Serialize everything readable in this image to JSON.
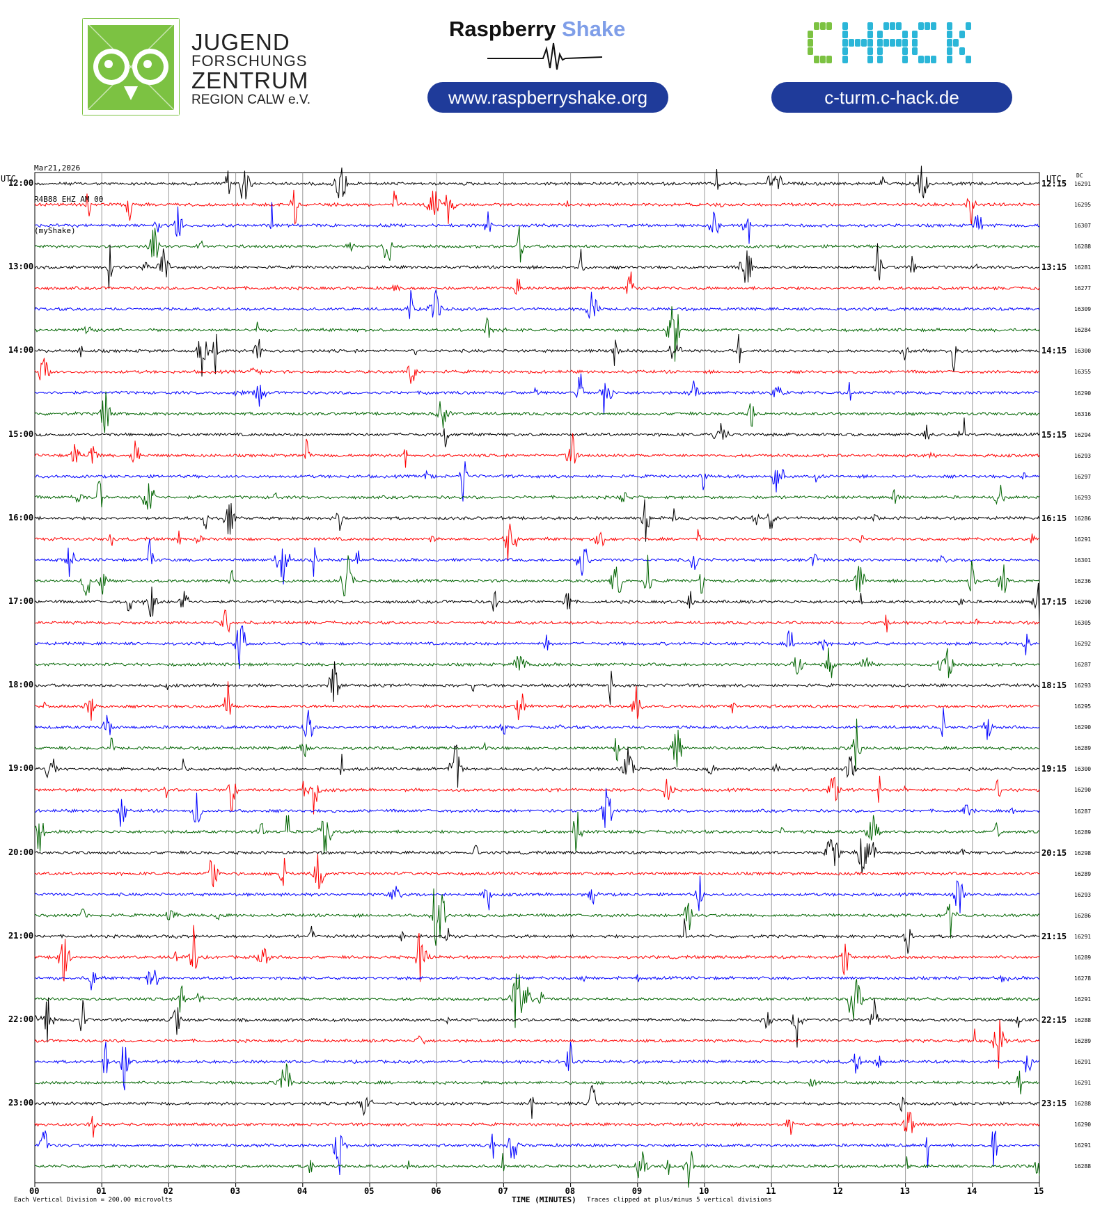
{
  "logos": {
    "jfz": {
      "line1": "JUGEND",
      "line2": "FORSCHUNGS",
      "line3": "ZENTRUM",
      "line4": "REGION CALW e.V.",
      "color": "#7cc242"
    },
    "raspberry_shake": {
      "part1": "Raspberry",
      "part2": "Shake",
      "url": "www.raspberryshake.org"
    },
    "chack": {
      "text": "CHACK",
      "url": "c-turm.c-hack.de",
      "green": "#7cc242",
      "cyan": "#2bb6d8"
    },
    "pill_color": "#1f3b9a"
  },
  "header": {
    "date": "Mar21,2026",
    "station": "R4B88 EHZ AM 00",
    "source": "(myShake)"
  },
  "chart_data": {
    "type": "line",
    "title": "",
    "left_axis_label": "UTC",
    "right_axis_label": "UTC",
    "dc_label": "DC",
    "xlabel": "TIME (MINUTES)",
    "x_ticks": [
      "00",
      "01",
      "02",
      "03",
      "04",
      "05",
      "06",
      "07",
      "08",
      "09",
      "10",
      "11",
      "12",
      "13",
      "14",
      "15"
    ],
    "xlim": [
      0,
      15
    ],
    "grid": true,
    "trace_colors": [
      "#000000",
      "#ff0000",
      "#0000ff",
      "#006400"
    ],
    "left_hour_labels": [
      "12:00",
      "13:00",
      "14:00",
      "15:00",
      "16:00",
      "17:00",
      "18:00",
      "19:00",
      "20:00",
      "21:00",
      "22:00",
      "23:00"
    ],
    "right_hour_labels": [
      "12:15",
      "13:15",
      "14:15",
      "15:15",
      "16:15",
      "17:15",
      "18:15",
      "19:15",
      "20:15",
      "21:15",
      "22:15",
      "23:15"
    ],
    "dc_values": [
      "16291",
      "16295",
      "16307",
      "16288",
      "16281",
      "16277",
      "16309",
      "16284",
      "16300",
      "16355",
      "16290",
      "16316",
      "16294",
      "16293",
      "16297",
      "16293",
      "16286",
      "16291",
      "16301",
      "16236",
      "16290",
      "16305",
      "16292",
      "16287",
      "16293",
      "16295",
      "16290",
      "16289",
      "16300",
      "16290",
      "16287",
      "16289",
      "16298",
      "16289",
      "16293",
      "16286",
      "16291",
      "16289",
      "16278",
      "16291",
      "16288",
      "16289",
      "16291",
      "16291",
      "16288",
      "16290",
      "16291",
      "16288"
    ],
    "footer_left": "Each Vertical Division =  200.00 microvolts",
    "footer_right": "Traces clipped at plus/minus 5 vertical divisions"
  }
}
